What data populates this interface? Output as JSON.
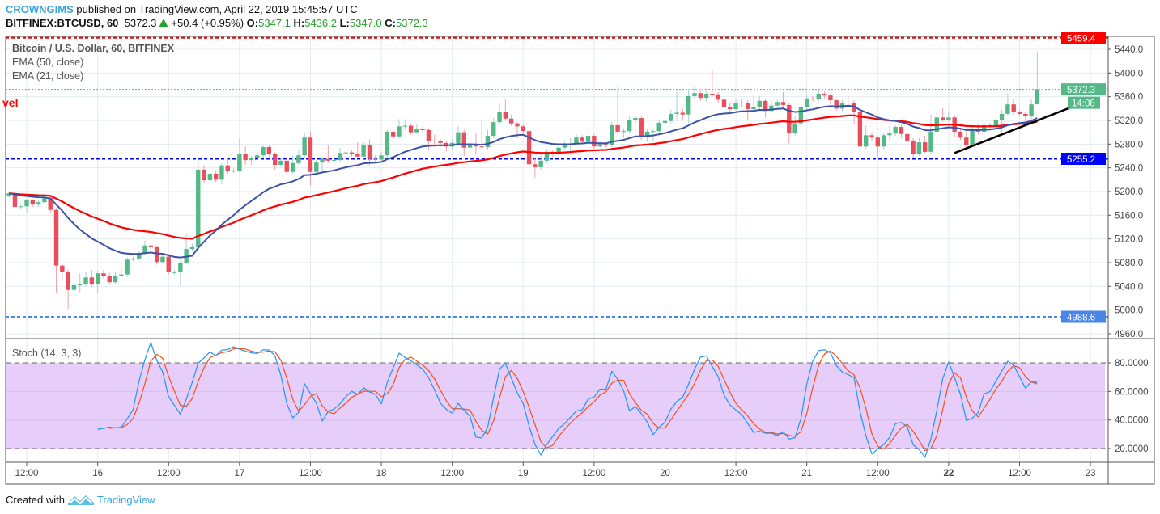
{
  "header": {
    "author": "CROWNGIMS",
    "published": "published on TradingView.com, April 22, 2019 15:45:57 UTC",
    "symbol": "BITFINEX:BTCUSD, 60",
    "last": "5372.3",
    "change": "+50.4 (+0.95%)",
    "o_label": "O:",
    "o": "5347.1",
    "h_label": "H:",
    "h": "5436.2",
    "l_label": "L:",
    "l": "5347.0",
    "c_label": "C:",
    "c": "5372.3"
  },
  "legend": {
    "title": "Bitcoin / U.S. Dollar, 60, BITFINEX",
    "ema50": "EMA (50, close)",
    "ema21": "EMA (21, close)",
    "stoch": "Stoch (14, 3, 3)"
  },
  "cut_label": "vel",
  "footer": {
    "created": "Created with",
    "brand": "TradingView"
  },
  "colors": {
    "up": "#53b987",
    "down": "#eb4d5c",
    "ema50": "#ff0000",
    "ema21": "#3c52a8",
    "stoch_k": "#2196f3",
    "stoch_d": "#f4511e",
    "stoch_band": "#e6cdfa",
    "trendline": "#000000"
  },
  "chart_data": [
    {
      "type": "candlestick",
      "title": "Bitcoin / U.S. Dollar, 60, BITFINEX",
      "interval_minutes": 60,
      "first_bar": "2019-04-15 09:00",
      "xlim": [
        "2019-04-15 08:26",
        "2019-04-23 03:00"
      ],
      "ylim": [
        4951.8,
        5461.8
      ],
      "grid": true,
      "x_ticks": [
        {
          "t": "2019-04-15 12:00",
          "label": "12:00"
        },
        {
          "t": "2019-04-16 00:00",
          "label": "16"
        },
        {
          "t": "2019-04-16 12:00",
          "label": "12:00"
        },
        {
          "t": "2019-04-17 00:00",
          "label": "17"
        },
        {
          "t": "2019-04-17 12:00",
          "label": "12:00"
        },
        {
          "t": "2019-04-18 00:00",
          "label": "18"
        },
        {
          "t": "2019-04-18 12:00",
          "label": "12:00"
        },
        {
          "t": "2019-04-19 00:00",
          "label": "19"
        },
        {
          "t": "2019-04-19 12:00",
          "label": "12:00"
        },
        {
          "t": "2019-04-20 00:00",
          "label": "20"
        },
        {
          "t": "2019-04-20 12:00",
          "label": "12:00"
        },
        {
          "t": "2019-04-21 00:00",
          "label": "21"
        },
        {
          "t": "2019-04-21 12:00",
          "label": "12:00"
        },
        {
          "t": "2019-04-22 00:00",
          "label": "22",
          "bold": true
        },
        {
          "t": "2019-04-22 12:00",
          "label": "12:00"
        },
        {
          "t": "2019-04-23 00:00",
          "label": "23"
        }
      ],
      "y_ticks": [
        "5440.0",
        "5400.0",
        "5360.0",
        "5320.0",
        "5280.0",
        "5240.0",
        "5200.0",
        "5160.0",
        "5120.0",
        "5080.0",
        "5040.0",
        "5000.0",
        "4960.0"
      ],
      "series": [
        {
          "name": "EMA (50, close)",
          "type": "ema",
          "period": 50
        },
        {
          "name": "EMA (21, close)",
          "type": "ema",
          "period": 21
        }
      ],
      "horizontal_lines": [
        {
          "price": 5459.4,
          "label": "5459.4",
          "color": "#ff0000",
          "style": "dashed"
        },
        {
          "price": 5372.3,
          "label": "5372.3",
          "color": "#53b987",
          "style": "dotted",
          "countdown": "14:08"
        },
        {
          "price": 5255.2,
          "label": "5255.2",
          "color": "#0000ff",
          "style": "dashed"
        },
        {
          "price": 4988.6,
          "label": "4988.6",
          "color": "#4a86e8",
          "style": "dashed"
        }
      ],
      "trendline": {
        "from": {
          "t": "2019-04-22 01:00",
          "price": 5265
        },
        "to": {
          "t": "2019-04-23 00:00",
          "price": 5355
        }
      },
      "candles": [
        [
          5192,
          5200,
          5189,
          5197
        ],
        [
          5197,
          5201,
          5170,
          5174
        ],
        [
          5174,
          5180,
          5170,
          5175
        ],
        [
          5175,
          5188,
          5163,
          5185
        ],
        [
          5185,
          5187,
          5174,
          5178
        ],
        [
          5178,
          5186,
          5174,
          5182
        ],
        [
          5182,
          5192,
          5178,
          5189
        ],
        [
          5189,
          5195,
          5165,
          5169
        ],
        [
          5169,
          5172,
          5030,
          5075
        ],
        [
          5075,
          5078,
          5050,
          5065
        ],
        [
          5065,
          5068,
          5002,
          5034
        ],
        [
          5034,
          5060,
          4980,
          5042
        ],
        [
          5042,
          5062,
          5030,
          5043
        ],
        [
          5043,
          5064,
          5040,
          5055
        ],
        [
          5055,
          5067,
          5040,
          5043
        ],
        [
          5043,
          5066,
          5028,
          5062
        ],
        [
          5062,
          5068,
          5053,
          5057
        ],
        [
          5057,
          5063,
          5043,
          5047
        ],
        [
          5047,
          5064,
          5044,
          5058
        ],
        [
          5058,
          5072,
          5056,
          5060
        ],
        [
          5060,
          5089,
          5056,
          5085
        ],
        [
          5085,
          5090,
          5083,
          5087
        ],
        [
          5087,
          5100,
          5084,
          5096
        ],
        [
          5096,
          5117,
          5092,
          5109
        ],
        [
          5109,
          5113,
          5102,
          5106
        ],
        [
          5106,
          5108,
          5077,
          5081
        ],
        [
          5081,
          5094,
          5078,
          5090
        ],
        [
          5090,
          5095,
          5060,
          5064
        ],
        [
          5064,
          5068,
          5060,
          5064
        ],
        [
          5064,
          5084,
          5041,
          5080
        ],
        [
          5080,
          5127,
          5077,
          5103
        ],
        [
          5103,
          5112,
          5100,
          5106
        ],
        [
          5106,
          5255,
          5100,
          5237
        ],
        [
          5237,
          5245,
          5215,
          5219
        ],
        [
          5219,
          5233,
          5213,
          5230
        ],
        [
          5230,
          5234,
          5216,
          5220
        ],
        [
          5220,
          5247,
          5212,
          5244
        ],
        [
          5244,
          5257,
          5230,
          5234
        ],
        [
          5234,
          5239,
          5231,
          5235
        ],
        [
          5235,
          5290,
          5232,
          5264
        ],
        [
          5264,
          5276,
          5245,
          5253
        ],
        [
          5253,
          5260,
          5245,
          5256
        ],
        [
          5256,
          5265,
          5252,
          5261
        ],
        [
          5261,
          5279,
          5256,
          5275
        ],
        [
          5275,
          5278,
          5259,
          5263
        ],
        [
          5263,
          5266,
          5237,
          5245
        ],
        [
          5245,
          5256,
          5241,
          5252
        ],
        [
          5252,
          5256,
          5229,
          5233
        ],
        [
          5233,
          5260,
          5230,
          5248
        ],
        [
          5248,
          5269,
          5245,
          5261
        ],
        [
          5261,
          5300,
          5257,
          5291
        ],
        [
          5291,
          5301,
          5210,
          5233
        ],
        [
          5233,
          5253,
          5229,
          5249
        ],
        [
          5249,
          5259,
          5232,
          5255
        ],
        [
          5255,
          5278,
          5248,
          5252
        ],
        [
          5252,
          5257,
          5245,
          5253
        ],
        [
          5253,
          5274,
          5249,
          5265
        ],
        [
          5265,
          5270,
          5262,
          5266
        ],
        [
          5266,
          5270,
          5259,
          5263
        ],
        [
          5263,
          5283,
          5256,
          5259
        ],
        [
          5259,
          5283,
          5255,
          5279
        ],
        [
          5279,
          5288,
          5244,
          5255
        ],
        [
          5255,
          5261,
          5250,
          5254
        ],
        [
          5254,
          5267,
          5250,
          5261
        ],
        [
          5261,
          5306,
          5257,
          5301
        ],
        [
          5301,
          5310,
          5290,
          5293
        ],
        [
          5293,
          5322,
          5289,
          5310
        ],
        [
          5310,
          5322,
          5304,
          5311
        ],
        [
          5311,
          5315,
          5296,
          5300
        ],
        [
          5300,
          5313,
          5298,
          5305
        ],
        [
          5305,
          5310,
          5300,
          5304
        ],
        [
          5304,
          5307,
          5270,
          5286
        ],
        [
          5286,
          5296,
          5275,
          5285
        ],
        [
          5285,
          5289,
          5277,
          5282
        ],
        [
          5282,
          5285,
          5268,
          5276
        ],
        [
          5276,
          5288,
          5272,
          5282
        ],
        [
          5282,
          5310,
          5279,
          5300
        ],
        [
          5300,
          5304,
          5260,
          5274
        ],
        [
          5274,
          5310,
          5270,
          5280
        ],
        [
          5280,
          5298,
          5262,
          5276
        ],
        [
          5276,
          5322,
          5272,
          5275
        ],
        [
          5275,
          5304,
          5271,
          5294
        ],
        [
          5294,
          5324,
          5290,
          5317
        ],
        [
          5317,
          5350,
          5313,
          5335
        ],
        [
          5335,
          5355,
          5320,
          5323
        ],
        [
          5323,
          5330,
          5311,
          5315
        ],
        [
          5315,
          5318,
          5290,
          5310
        ],
        [
          5310,
          5314,
          5298,
          5302
        ],
        [
          5302,
          5306,
          5233,
          5246
        ],
        [
          5246,
          5258,
          5223,
          5241
        ],
        [
          5241,
          5262,
          5237,
          5252
        ],
        [
          5252,
          5272,
          5248,
          5267
        ],
        [
          5267,
          5270,
          5259,
          5263
        ],
        [
          5263,
          5281,
          5260,
          5274
        ],
        [
          5274,
          5284,
          5270,
          5280
        ],
        [
          5280,
          5290,
          5262,
          5281
        ],
        [
          5281,
          5296,
          5278,
          5291
        ],
        [
          5291,
          5295,
          5280,
          5284
        ],
        [
          5284,
          5298,
          5281,
          5294
        ],
        [
          5294,
          5297,
          5272,
          5276
        ],
        [
          5276,
          5284,
          5273,
          5280
        ],
        [
          5280,
          5283,
          5275,
          5278
        ],
        [
          5278,
          5318,
          5275,
          5312
        ],
        [
          5312,
          5377,
          5296,
          5301
        ],
        [
          5301,
          5307,
          5290,
          5302
        ],
        [
          5302,
          5327,
          5298,
          5320
        ],
        [
          5320,
          5327,
          5314,
          5324
        ],
        [
          5324,
          5327,
          5287,
          5293
        ],
        [
          5293,
          5306,
          5284,
          5301
        ],
        [
          5301,
          5306,
          5284,
          5302
        ],
        [
          5302,
          5322,
          5299,
          5316
        ],
        [
          5316,
          5333,
          5313,
          5319
        ],
        [
          5319,
          5338,
          5315,
          5331
        ],
        [
          5331,
          5370,
          5322,
          5333
        ],
        [
          5333,
          5340,
          5320,
          5330
        ],
        [
          5330,
          5373,
          5316,
          5361
        ],
        [
          5361,
          5377,
          5355,
          5366
        ],
        [
          5366,
          5372,
          5353,
          5358
        ],
        [
          5358,
          5370,
          5352,
          5365
        ],
        [
          5365,
          5406,
          5360,
          5364
        ],
        [
          5364,
          5368,
          5350,
          5355
        ],
        [
          5355,
          5358,
          5324,
          5343
        ],
        [
          5343,
          5350,
          5334,
          5339
        ],
        [
          5339,
          5357,
          5335,
          5350
        ],
        [
          5350,
          5357,
          5343,
          5349
        ],
        [
          5349,
          5354,
          5320,
          5339
        ],
        [
          5339,
          5362,
          5334,
          5342
        ],
        [
          5342,
          5360,
          5338,
          5353
        ],
        [
          5353,
          5356,
          5325,
          5336
        ],
        [
          5336,
          5354,
          5332,
          5345
        ],
        [
          5345,
          5355,
          5342,
          5351
        ],
        [
          5351,
          5368,
          5339,
          5346
        ],
        [
          5346,
          5349,
          5281,
          5298
        ],
        [
          5298,
          5328,
          5294,
          5315
        ],
        [
          5315,
          5345,
          5311,
          5342
        ],
        [
          5342,
          5364,
          5337,
          5357
        ],
        [
          5357,
          5361,
          5352,
          5356
        ],
        [
          5356,
          5372,
          5352,
          5365
        ],
        [
          5365,
          5369,
          5357,
          5362
        ],
        [
          5362,
          5366,
          5346,
          5354
        ],
        [
          5354,
          5357,
          5336,
          5340
        ],
        [
          5340,
          5354,
          5336,
          5350
        ],
        [
          5350,
          5360,
          5345,
          5349
        ],
        [
          5349,
          5354,
          5314,
          5334
        ],
        [
          5334,
          5337,
          5271,
          5276
        ],
        [
          5276,
          5311,
          5272,
          5295
        ],
        [
          5295,
          5300,
          5286,
          5291
        ],
        [
          5291,
          5294,
          5258,
          5276
        ],
        [
          5276,
          5298,
          5272,
          5295
        ],
        [
          5295,
          5310,
          5288,
          5298
        ],
        [
          5298,
          5312,
          5294,
          5309
        ],
        [
          5309,
          5312,
          5290,
          5297
        ],
        [
          5297,
          5300,
          5282,
          5286
        ],
        [
          5286,
          5290,
          5257,
          5264
        ],
        [
          5264,
          5290,
          5260,
          5283
        ],
        [
          5283,
          5294,
          5265,
          5267
        ],
        [
          5267,
          5330,
          5263,
          5301
        ],
        [
          5301,
          5334,
          5297,
          5325
        ],
        [
          5325,
          5341,
          5318,
          5321
        ],
        [
          5321,
          5336,
          5317,
          5325
        ],
        [
          5325,
          5329,
          5292,
          5301
        ],
        [
          5301,
          5306,
          5287,
          5291
        ],
        [
          5291,
          5304,
          5274,
          5279
        ],
        [
          5279,
          5309,
          5275,
          5305
        ],
        [
          5305,
          5313,
          5296,
          5301
        ],
        [
          5301,
          5316,
          5290,
          5312
        ],
        [
          5312,
          5315,
          5304,
          5309
        ],
        [
          5309,
          5327,
          5305,
          5320
        ],
        [
          5320,
          5338,
          5301,
          5331
        ],
        [
          5331,
          5365,
          5327,
          5347
        ],
        [
          5347,
          5356,
          5330,
          5334
        ],
        [
          5334,
          5337,
          5327,
          5331
        ],
        [
          5331,
          5334,
          5314,
          5327
        ],
        [
          5327,
          5355,
          5322,
          5347
        ],
        [
          5347.1,
          5436.2,
          5347.0,
          5372.3
        ]
      ]
    },
    {
      "type": "line",
      "title": "Stoch (14, 3, 3)",
      "params": [
        14,
        3,
        3
      ],
      "ylim": [
        10.4,
        97
      ],
      "y_ticks": [
        "80.0000",
        "60.0000",
        "40.0000",
        "20.0000"
      ],
      "bands": [
        20,
        80
      ],
      "series": [
        {
          "type": "stoch_k"
        },
        {
          "type": "stoch_d"
        }
      ]
    }
  ]
}
